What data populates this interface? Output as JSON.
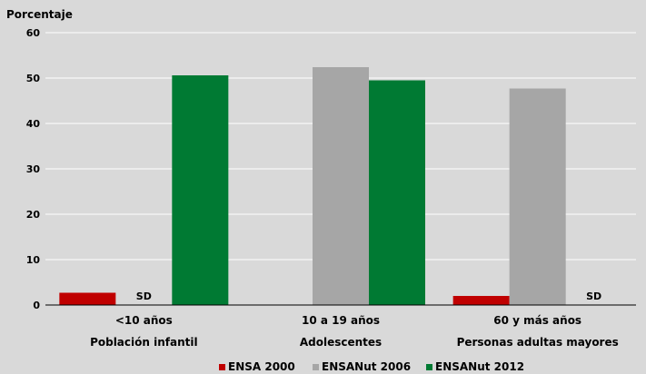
{
  "chart_data": {
    "type": "bar",
    "ylabel": "Porcentaje",
    "ylim": [
      0,
      60
    ],
    "yticks": [
      0,
      10,
      20,
      30,
      40,
      50,
      60
    ],
    "grid": true,
    "legend_position": "bottom",
    "categories": [
      {
        "line1": "<10 años",
        "line2": "Población infantil"
      },
      {
        "line1": "10 a 19 años",
        "line2": "Adolescentes"
      },
      {
        "line1": "60 y más años",
        "line2": "Personas adultas mayores"
      }
    ],
    "series": [
      {
        "name": "ENSA 2000",
        "color": "#c00000",
        "values": [
          2.7,
          null,
          2.0
        ]
      },
      {
        "name": "ENSANut 2006",
        "color": "#a6a6a6",
        "values": [
          null,
          52.4,
          47.7
        ]
      },
      {
        "name": "ENSANut 2012",
        "color": "#007a33",
        "values": [
          50.6,
          49.5,
          null
        ]
      }
    ],
    "annotations": [
      {
        "category": 0,
        "series": 1,
        "text": "SD"
      },
      {
        "category": 2,
        "series": 2,
        "text": "SD"
      }
    ]
  }
}
